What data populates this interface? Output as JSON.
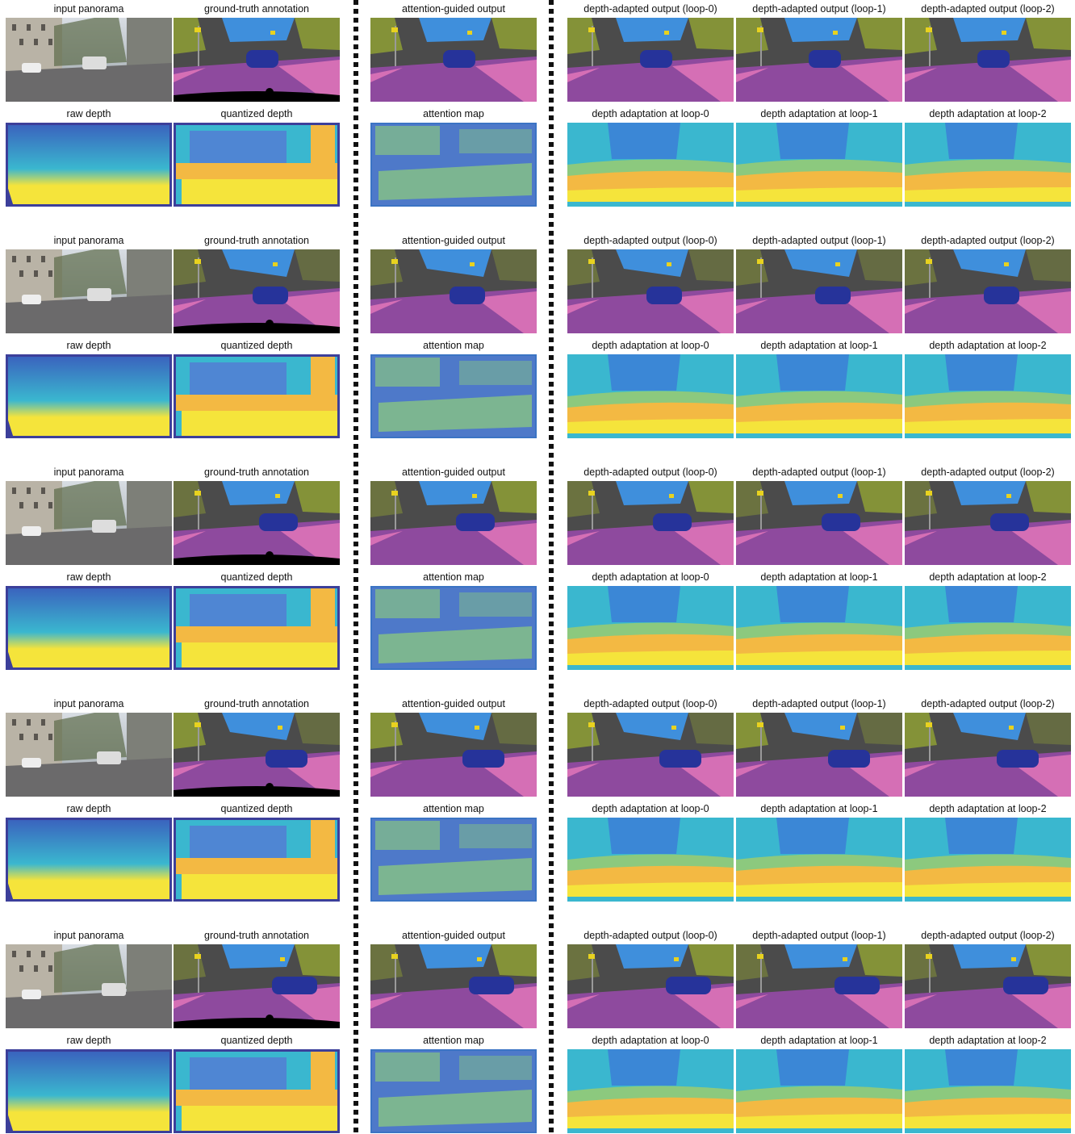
{
  "figure": {
    "labels": {
      "input": "input panorama",
      "gt": "ground-truth annotation",
      "attn_out": "attention-guided output",
      "dao0": "depth-adapted output (loop-0)",
      "dao1": "depth-adapted output (loop-1)",
      "dao2": "depth-adapted output (loop-2)",
      "raw": "raw depth",
      "quant": "quantized depth",
      "attn_map": "attention map",
      "da0": "depth adaptation at loop-0",
      "da1": "depth adaptation at loop-1",
      "da2": "depth adaptation at loop-2"
    },
    "top_row_keys": [
      "input",
      "gt",
      "attn_out",
      "dao0",
      "dao1",
      "dao2"
    ],
    "bottom_row_keys": [
      "raw",
      "quant",
      "attn_map",
      "da0",
      "da1",
      "da2"
    ],
    "example_count": 5,
    "colors": {
      "road": "#8e4a9e",
      "sidewalk": "#d56fb5",
      "building": "#4b4b4b",
      "vegetation": "#8b9a36",
      "sky": "#3f8fdc",
      "car": "#26339a",
      "pole_sign": "#e8d21f",
      "depth_far": "#3a5fbd",
      "depth_mid": "#3ab7cf",
      "depth_near": "#f5e43b",
      "depth_orange": "#f3b943",
      "depth_green": "#8cc97e",
      "border": "#3c3f9a"
    }
  }
}
